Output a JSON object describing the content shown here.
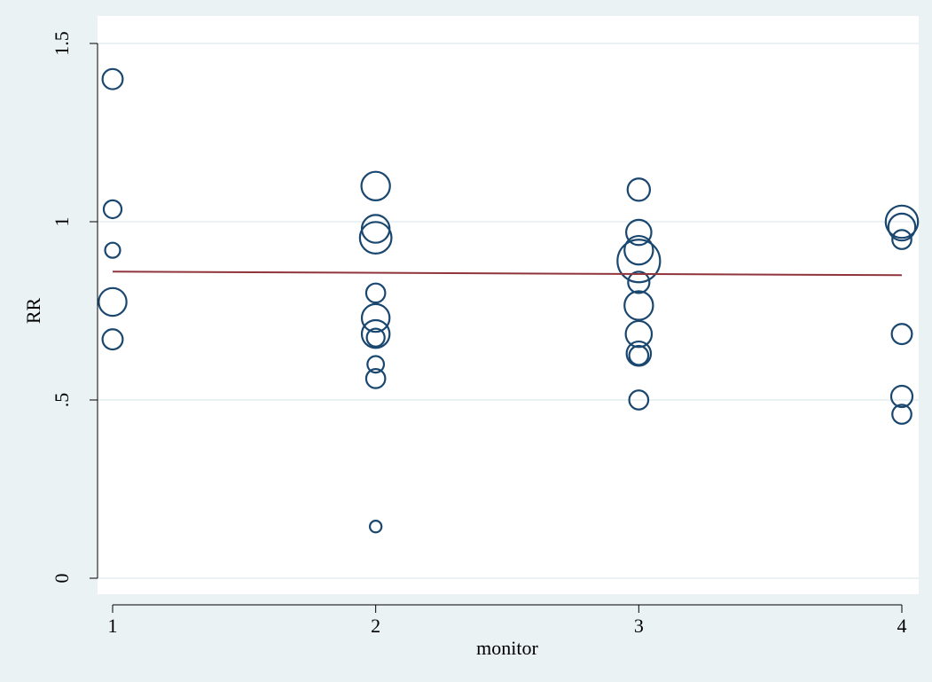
{
  "chart_data": {
    "type": "scatter",
    "title": "",
    "xlabel": "monitor",
    "ylabel": "RR",
    "xlim": [
      0.95,
      4.05
    ],
    "ylim": [
      0,
      1.5
    ],
    "x_ticks": [
      1,
      2,
      3,
      4
    ],
    "x_tick_labels": [
      "1",
      "2",
      "3",
      "4"
    ],
    "y_ticks": [
      0,
      0.5,
      1,
      1.5
    ],
    "y_tick_labels": [
      "0",
      ".5",
      "1",
      "1.5"
    ],
    "grid": "horizontal",
    "legend": "none",
    "marker": "hollow circle, size weighted",
    "colors": {
      "background": "#eaf2f3",
      "plot_area": "#ffffff",
      "gridline": "#eaf2f3",
      "marker": "#1a476f",
      "fit_line": "#90353b"
    },
    "points": [
      {
        "x": 1,
        "y": 1.4,
        "w": 0.9
      },
      {
        "x": 1,
        "y": 1.035,
        "w": 0.7
      },
      {
        "x": 1,
        "y": 0.92,
        "w": 0.5
      },
      {
        "x": 1,
        "y": 0.775,
        "w": 1.7
      },
      {
        "x": 1,
        "y": 0.67,
        "w": 0.9
      },
      {
        "x": 2,
        "y": 1.1,
        "w": 1.8
      },
      {
        "x": 2,
        "y": 0.98,
        "w": 1.7
      },
      {
        "x": 2,
        "y": 0.955,
        "w": 2.2
      },
      {
        "x": 2,
        "y": 0.8,
        "w": 0.8
      },
      {
        "x": 2,
        "y": 0.73,
        "w": 1.7
      },
      {
        "x": 2,
        "y": 0.685,
        "w": 1.7
      },
      {
        "x": 2,
        "y": 0.675,
        "w": 0.7
      },
      {
        "x": 2,
        "y": 0.6,
        "w": 0.6
      },
      {
        "x": 2,
        "y": 0.56,
        "w": 0.8
      },
      {
        "x": 2,
        "y": 0.145,
        "w": 0.3
      },
      {
        "x": 3,
        "y": 1.09,
        "w": 1.1
      },
      {
        "x": 3,
        "y": 0.97,
        "w": 1.4
      },
      {
        "x": 3,
        "y": 0.92,
        "w": 1.8
      },
      {
        "x": 3,
        "y": 0.89,
        "w": 4.0
      },
      {
        "x": 3,
        "y": 0.83,
        "w": 1.0
      },
      {
        "x": 3,
        "y": 0.765,
        "w": 1.8
      },
      {
        "x": 3,
        "y": 0.685,
        "w": 1.5
      },
      {
        "x": 3,
        "y": 0.63,
        "w": 1.3
      },
      {
        "x": 3,
        "y": 0.625,
        "w": 0.8
      },
      {
        "x": 3,
        "y": 0.5,
        "w": 0.8
      },
      {
        "x": 4,
        "y": 1.0,
        "w": 2.3
      },
      {
        "x": 4,
        "y": 0.985,
        "w": 1.6
      },
      {
        "x": 4,
        "y": 0.95,
        "w": 0.8
      },
      {
        "x": 4,
        "y": 0.685,
        "w": 0.9
      },
      {
        "x": 4,
        "y": 0.51,
        "w": 1.0
      },
      {
        "x": 4,
        "y": 0.46,
        "w": 0.8
      }
    ],
    "fit_line": {
      "x": [
        1,
        4
      ],
      "y": [
        0.86,
        0.85
      ]
    }
  }
}
